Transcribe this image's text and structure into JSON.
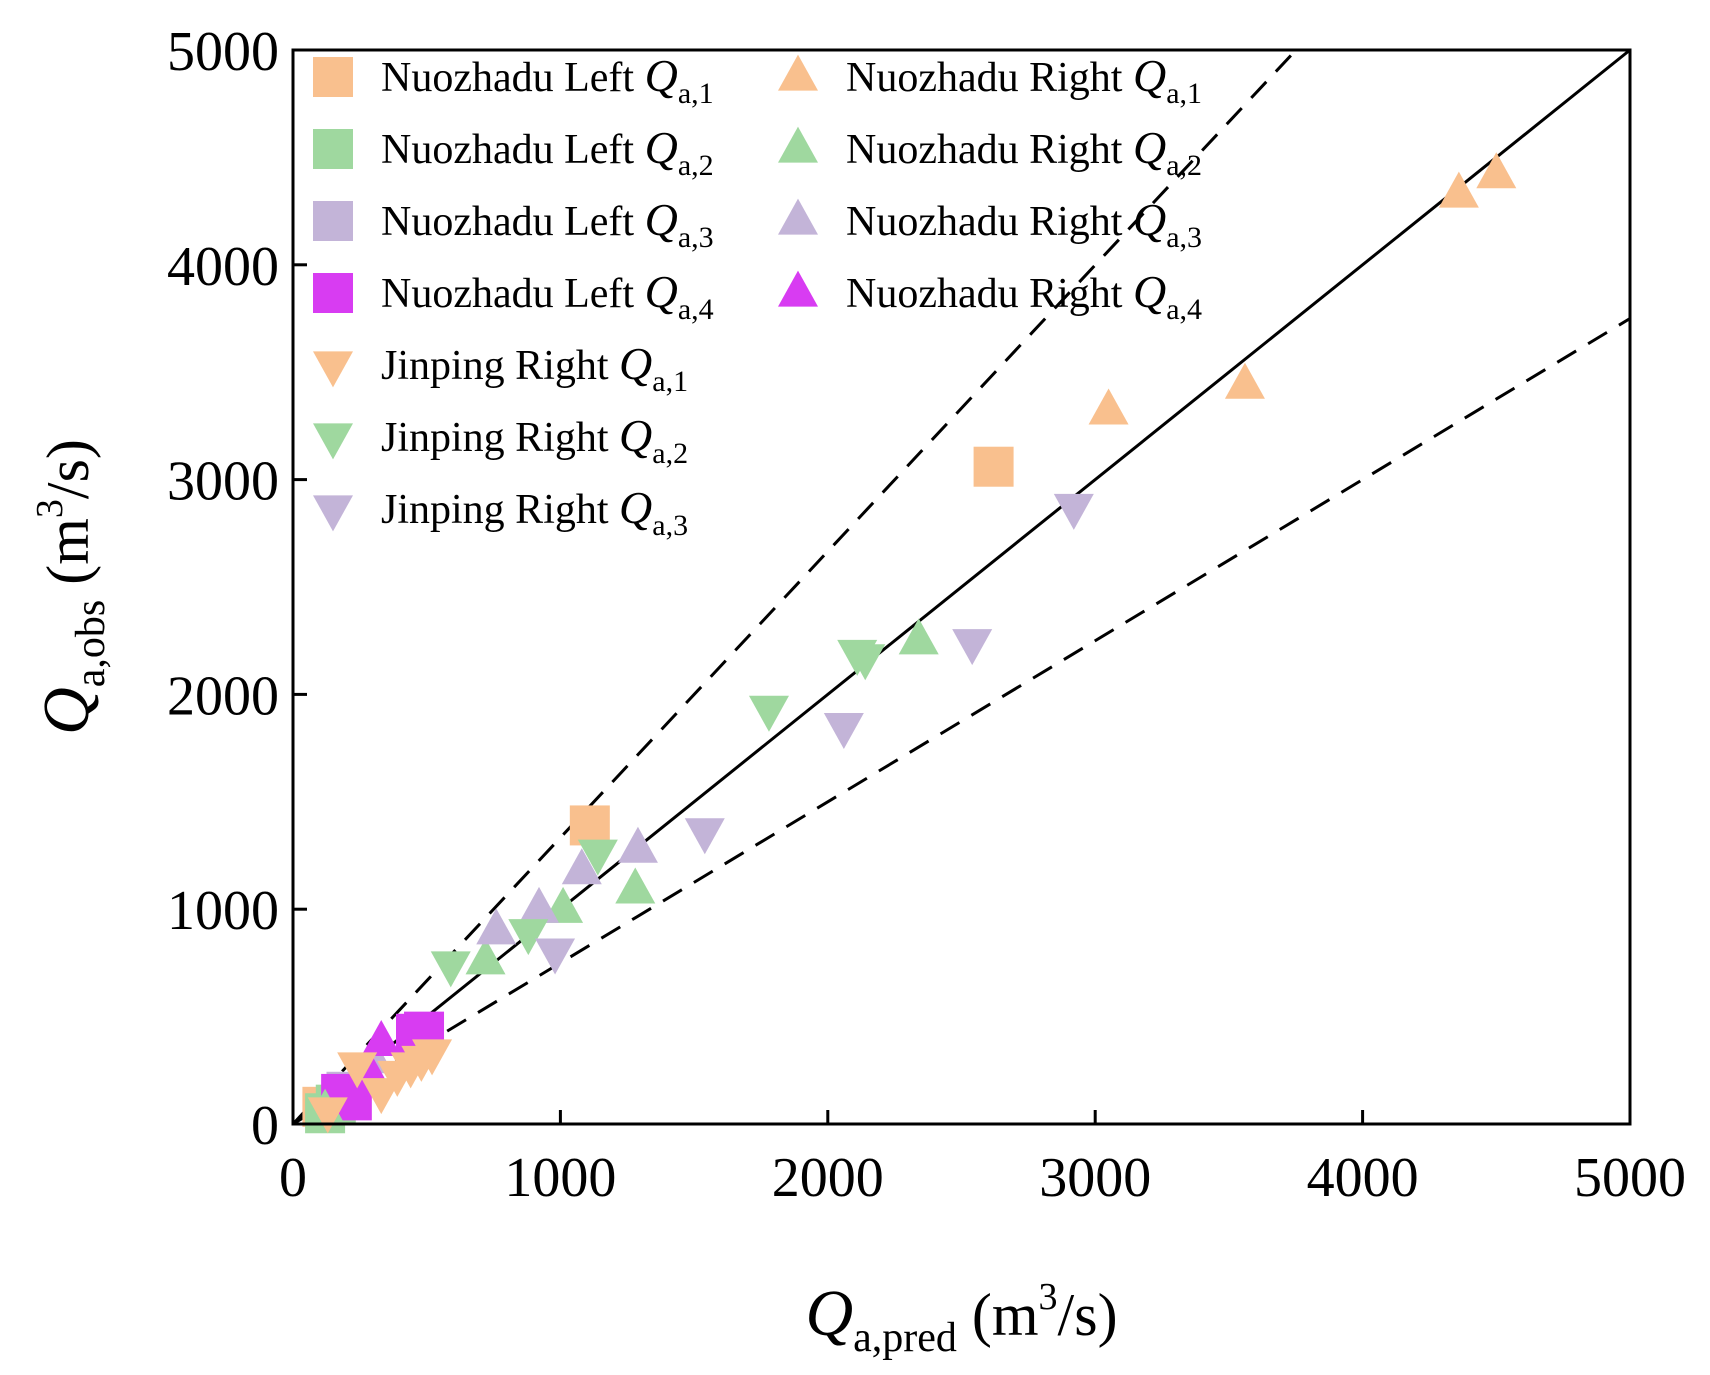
{
  "chart_data": {
    "type": "scatter",
    "title": "",
    "xlabel": {
      "symbol": "Q",
      "sub": "a,pred",
      "unit_open": " (m",
      "unit_sup": "3",
      "unit_close": "/s)"
    },
    "ylabel": {
      "symbol": "Q",
      "sub": "a,obs",
      "unit_open": " (m",
      "unit_sup": "3",
      "unit_close": "/s)"
    },
    "xlim": [
      0,
      5000
    ],
    "ylim": [
      0,
      5000
    ],
    "xticks": [
      "0",
      "1000",
      "2000",
      "3000",
      "4000",
      "5000"
    ],
    "yticks": [
      "0",
      "1000",
      "2000",
      "3000",
      "4000",
      "5000"
    ],
    "grid": false,
    "legend_position": "top-left",
    "reference_lines": [
      {
        "name": "1:1 line",
        "style": "solid",
        "slope": 1.0
      },
      {
        "name": "upper bound",
        "style": "dashed",
        "slope": 1.333
      },
      {
        "name": "lower bound",
        "style": "dashed",
        "slope": 0.75
      }
    ],
    "series": [
      {
        "name": "Nuozhadu Left",
        "sub": "a,1",
        "marker": "square",
        "color": "#F9C08E",
        "points": [
          [
            110,
            80
          ],
          [
            1110,
            1390
          ],
          [
            2620,
            3060
          ]
        ]
      },
      {
        "name": "Nuozhadu Left",
        "sub": "a,2",
        "marker": "square",
        "color": "#9FD89F",
        "points": [
          [
            120,
            50
          ],
          [
            160,
            90
          ]
        ]
      },
      {
        "name": "Nuozhadu Left",
        "sub": "a,3",
        "marker": "square",
        "color": "#C3B4D8",
        "points": [
          [
            200,
            150
          ]
        ]
      },
      {
        "name": "Nuozhadu Left",
        "sub": "a,4",
        "marker": "square",
        "color": "#D83CF2",
        "points": [
          [
            180,
            140
          ],
          [
            220,
            110
          ],
          [
            460,
            420
          ],
          [
            490,
            430
          ]
        ]
      },
      {
        "name": "Nuozhadu Right",
        "sub": "a,1",
        "marker": "triangle-up",
        "color": "#F9C08E",
        "points": [
          [
            3050,
            3320
          ],
          [
            3560,
            3440
          ],
          [
            4360,
            4330
          ],
          [
            4500,
            4420
          ]
        ]
      },
      {
        "name": "Nuozhadu Right",
        "sub": "a,2",
        "marker": "triangle-up",
        "color": "#9FD89F",
        "points": [
          [
            120,
            60
          ],
          [
            720,
            760
          ],
          [
            1010,
            1000
          ],
          [
            1280,
            1090
          ],
          [
            2340,
            2250
          ]
        ]
      },
      {
        "name": "Nuozhadu Right",
        "sub": "a,3",
        "marker": "triangle-up",
        "color": "#C3B4D8",
        "points": [
          [
            300,
            300
          ],
          [
            760,
            900
          ],
          [
            920,
            1000
          ],
          [
            1080,
            1180
          ],
          [
            1290,
            1280
          ]
        ]
      },
      {
        "name": "Nuozhadu Right",
        "sub": "a,4",
        "marker": "triangle-up",
        "color": "#D83CF2",
        "points": [
          [
            330,
            380
          ],
          [
            280,
            250
          ]
        ]
      },
      {
        "name": "Jinping Right",
        "sub": "a,1",
        "marker": "triangle-down",
        "color": "#F9C08E",
        "points": [
          [
            130,
            60
          ],
          [
            240,
            270
          ],
          [
            330,
            150
          ],
          [
            390,
            230
          ],
          [
            440,
            270
          ],
          [
            480,
            300
          ],
          [
            520,
            330
          ]
        ]
      },
      {
        "name": "Jinping Right",
        "sub": "a,2",
        "marker": "triangle-down",
        "color": "#9FD89F",
        "points": [
          [
            590,
            740
          ],
          [
            880,
            890
          ],
          [
            1140,
            1260
          ],
          [
            1780,
            1930
          ],
          [
            2110,
            2190
          ],
          [
            2140,
            2170
          ]
        ]
      },
      {
        "name": "Jinping Right",
        "sub": "a,3",
        "marker": "triangle-down",
        "color": "#C3B4D8",
        "points": [
          [
            980,
            800
          ],
          [
            1540,
            1360
          ],
          [
            2060,
            1850
          ],
          [
            2540,
            2240
          ],
          [
            2920,
            2870
          ]
        ]
      }
    ]
  }
}
